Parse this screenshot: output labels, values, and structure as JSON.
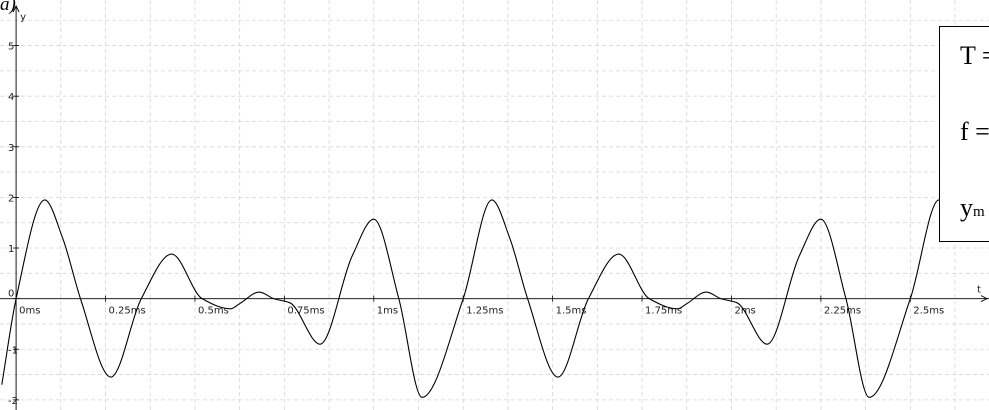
{
  "part_label": "a)",
  "info_box": {
    "line1": "T =",
    "line2": "f =",
    "line3": "y",
    "line3_sub": "m"
  },
  "chart_data": {
    "type": "line",
    "xlabel": "t",
    "ylabel": "y",
    "xlim": [
      -0.045,
      2.72
    ],
    "ylim": [
      -2.2,
      5.9
    ],
    "grid": true,
    "x_ticks": [
      0,
      0.25,
      0.5,
      0.75,
      1,
      1.25,
      1.5,
      1.75,
      2,
      2.25,
      2.5
    ],
    "x_tick_labels": [
      "0ms",
      "0.25ms",
      "0.5ms",
      "0.75ms",
      "1ms",
      "1.25ms",
      "1.5ms",
      "1.75ms",
      "2ms",
      "2.25ms",
      "2.5ms"
    ],
    "y_ticks": [
      -2,
      -1,
      0,
      1,
      2,
      3,
      4,
      5
    ],
    "y_tick_labels": [
      "-2",
      "-1",
      "0",
      "1",
      "2",
      "3",
      "4",
      "5"
    ],
    "series": [
      {
        "period_ms": 1.25,
        "x": [
          -0.04,
          0,
          0.08,
          0.13,
          0.18,
          0.265,
          0.35,
          0.435,
          0.52,
          0.6,
          0.625,
          0.68,
          0.72,
          0.765,
          0.85,
          0.94,
          1.0,
          1.07,
          1.135,
          1.25,
          1.33,
          1.38,
          1.43,
          1.515,
          1.6,
          1.685,
          1.77,
          1.85,
          1.875,
          1.93,
          1.97,
          2.015,
          2.1,
          2.19,
          2.25,
          2.32,
          2.385,
          2.5,
          2.58,
          2.62
        ],
        "y": [
          -1.7,
          0,
          1.95,
          1.2,
          0,
          -1.55,
          0,
          0.88,
          0,
          -0.2,
          -0.1,
          0.13,
          0,
          -0.08,
          -0.9,
          0.85,
          1.57,
          0,
          -1.95,
          0,
          1.95,
          1.2,
          0,
          -1.55,
          0,
          0.88,
          0,
          -0.2,
          -0.1,
          0.13,
          0,
          -0.08,
          -0.9,
          0.85,
          1.57,
          0,
          -1.95,
          0,
          1.95,
          1.2
        ]
      }
    ]
  }
}
